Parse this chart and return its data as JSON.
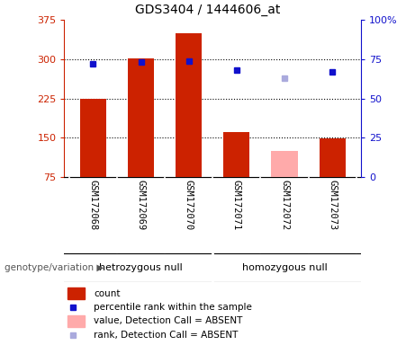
{
  "title": "GDS3404 / 1444606_at",
  "samples": [
    "GSM172068",
    "GSM172069",
    "GSM172070",
    "GSM172071",
    "GSM172072",
    "GSM172073"
  ],
  "bar_values": [
    224,
    302,
    350,
    160,
    125,
    148
  ],
  "bar_colors": [
    "#cc2200",
    "#cc2200",
    "#cc2200",
    "#cc2200",
    "#ffaaaa",
    "#cc2200"
  ],
  "percentile_values": [
    72,
    73,
    74,
    68,
    63,
    67
  ],
  "percentile_colors": [
    "#1111cc",
    "#1111cc",
    "#1111cc",
    "#1111cc",
    "#aaaadd",
    "#1111cc"
  ],
  "ylim_left": [
    75,
    375
  ],
  "ylim_right": [
    0,
    100
  ],
  "yticks_left": [
    75,
    150,
    225,
    300,
    375
  ],
  "yticks_right": [
    0,
    25,
    50,
    75,
    100
  ],
  "ytick_labels_right": [
    "0",
    "25",
    "50",
    "75",
    "100%"
  ],
  "hlines": [
    150,
    225,
    300
  ],
  "hetero_label": "hetrozygous null",
  "homo_label": "homozygous null",
  "genotype_label": "genotype/variation",
  "legend_items": [
    {
      "label": "count",
      "color": "#cc2200",
      "type": "rect"
    },
    {
      "label": "percentile rank within the sample",
      "color": "#1111cc",
      "type": "square"
    },
    {
      "label": "value, Detection Call = ABSENT",
      "color": "#ffaaaa",
      "type": "rect"
    },
    {
      "label": "rank, Detection Call = ABSENT",
      "color": "#aaaadd",
      "type": "square"
    }
  ],
  "bg_labels": "#c8c8c8",
  "bg_green": "#66dd66",
  "bar_width": 0.55,
  "left_col": "#cc2200",
  "right_col": "#1111cc"
}
